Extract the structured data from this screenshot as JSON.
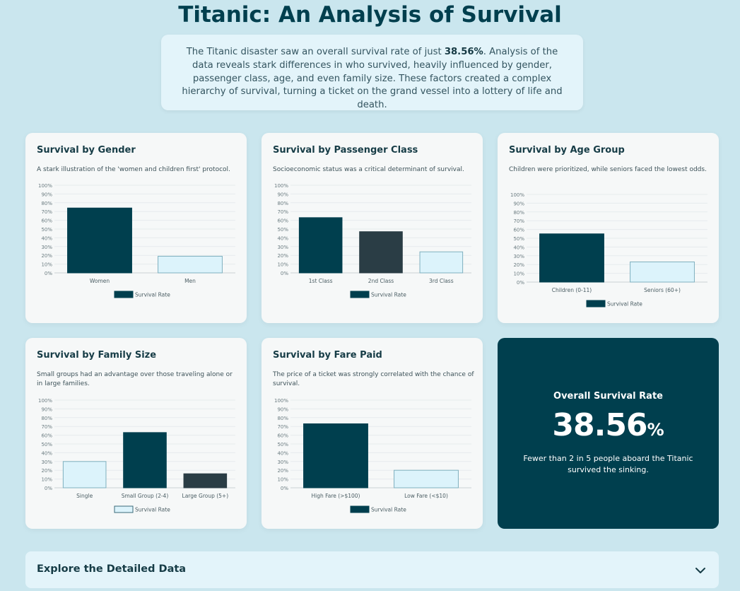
{
  "page": {
    "title": "Titanic: An Analysis of Survival",
    "intro_pre": "The Titanic disaster saw an overall survival rate of just ",
    "intro_bold": "38.56%",
    "intro_post": ". Analysis of the data reveals stark differences in who survived, heavily influenced by gender, passenger class, age, and even family size. These factors created a complex hierarchy of survival, turning a ticket on the grand vessel into a lottery of life and death."
  },
  "kpi": {
    "label": "Overall Survival Rate",
    "value": "38.56",
    "unit": "%",
    "note": "Fewer than 2 in 5 people aboard the Titanic survived the sinking."
  },
  "explore": {
    "title": "Explore the Detailed Data",
    "icon": "chevron-down-icon"
  },
  "colors": {
    "dark_teal": "#003f4e",
    "slate": "#2a3d45",
    "light_blue": "#dcf3fb",
    "light_border": "#7fb0bf",
    "background": "#cae6ee"
  },
  "charts": [
    {
      "id": "gender",
      "title": "Survival by Gender",
      "desc": "A stark illustration of the 'women and children first' protocol."
    },
    {
      "id": "class",
      "title": "Survival by Passenger Class",
      "desc": "Socioeconomic status was a critical determinant of survival."
    },
    {
      "id": "age",
      "title": "Survival by Age Group",
      "desc": "Children were prioritized, while seniors faced the lowest odds."
    },
    {
      "id": "family",
      "title": "Survival by Family Size",
      "desc": "Small groups had an advantage over those traveling alone or in large families."
    },
    {
      "id": "fare",
      "title": "Survival by Fare Paid",
      "desc": "The price of a ticket was strongly correlated with the chance of survival."
    }
  ],
  "chart_data": [
    {
      "type": "bar",
      "categories": [
        "Women",
        "Men"
      ],
      "series": [
        {
          "name": "Survival Rate",
          "values": [
            74,
            19
          ]
        }
      ],
      "bar_colors": [
        "#003f4e",
        "#dcf3fb"
      ],
      "legend_color": "#003f4e",
      "ylim": [
        0,
        100
      ],
      "tick_format": "%",
      "yticks": [
        0,
        10,
        20,
        30,
        40,
        50,
        60,
        70,
        80,
        90,
        100
      ],
      "grid": true,
      "legend": "bottom"
    },
    {
      "type": "bar",
      "categories": [
        "1st Class",
        "2nd Class",
        "3rd Class"
      ],
      "series": [
        {
          "name": "Survival Rate",
          "values": [
            63,
            47,
            24
          ]
        }
      ],
      "bar_colors": [
        "#003f4e",
        "#2a3d45",
        "#dcf3fb"
      ],
      "legend_color": "#003f4e",
      "ylim": [
        0,
        100
      ],
      "tick_format": "%",
      "yticks": [
        0,
        10,
        20,
        30,
        40,
        50,
        60,
        70,
        80,
        90,
        100
      ],
      "grid": true,
      "legend": "bottom"
    },
    {
      "type": "bar",
      "categories": [
        "Children (0-11)",
        "Seniors (60+)"
      ],
      "series": [
        {
          "name": "Survival Rate",
          "values": [
            55,
            23
          ]
        }
      ],
      "bar_colors": [
        "#003f4e",
        "#dcf3fb"
      ],
      "legend_color": "#003f4e",
      "ylim": [
        0,
        100
      ],
      "tick_format": "%",
      "yticks": [
        0,
        10,
        20,
        30,
        40,
        50,
        60,
        70,
        80,
        90,
        100
      ],
      "grid": true,
      "legend": "bottom"
    },
    {
      "type": "bar",
      "categories": [
        "Single",
        "Small Group (2-4)",
        "Large Group (5+)"
      ],
      "series": [
        {
          "name": "Survival Rate",
          "values": [
            30,
            63,
            16
          ]
        }
      ],
      "bar_colors": [
        "#dcf3fb",
        "#003f4e",
        "#2a3d45"
      ],
      "legend_color": "#dcf3fb",
      "ylim": [
        0,
        100
      ],
      "tick_format": "%",
      "yticks": [
        0,
        10,
        20,
        30,
        40,
        50,
        60,
        70,
        80,
        90,
        100
      ],
      "grid": true,
      "legend": "bottom"
    },
    {
      "type": "bar",
      "categories": [
        "High Fare (>$100)",
        "Low Fare (<$10)"
      ],
      "series": [
        {
          "name": "Survival Rate",
          "values": [
            73,
            20
          ]
        }
      ],
      "bar_colors": [
        "#003f4e",
        "#dcf3fb"
      ],
      "legend_color": "#003f4e",
      "ylim": [
        0,
        100
      ],
      "tick_format": "%",
      "yticks": [
        0,
        10,
        20,
        30,
        40,
        50,
        60,
        70,
        80,
        90,
        100
      ],
      "grid": true,
      "legend": "bottom"
    }
  ]
}
